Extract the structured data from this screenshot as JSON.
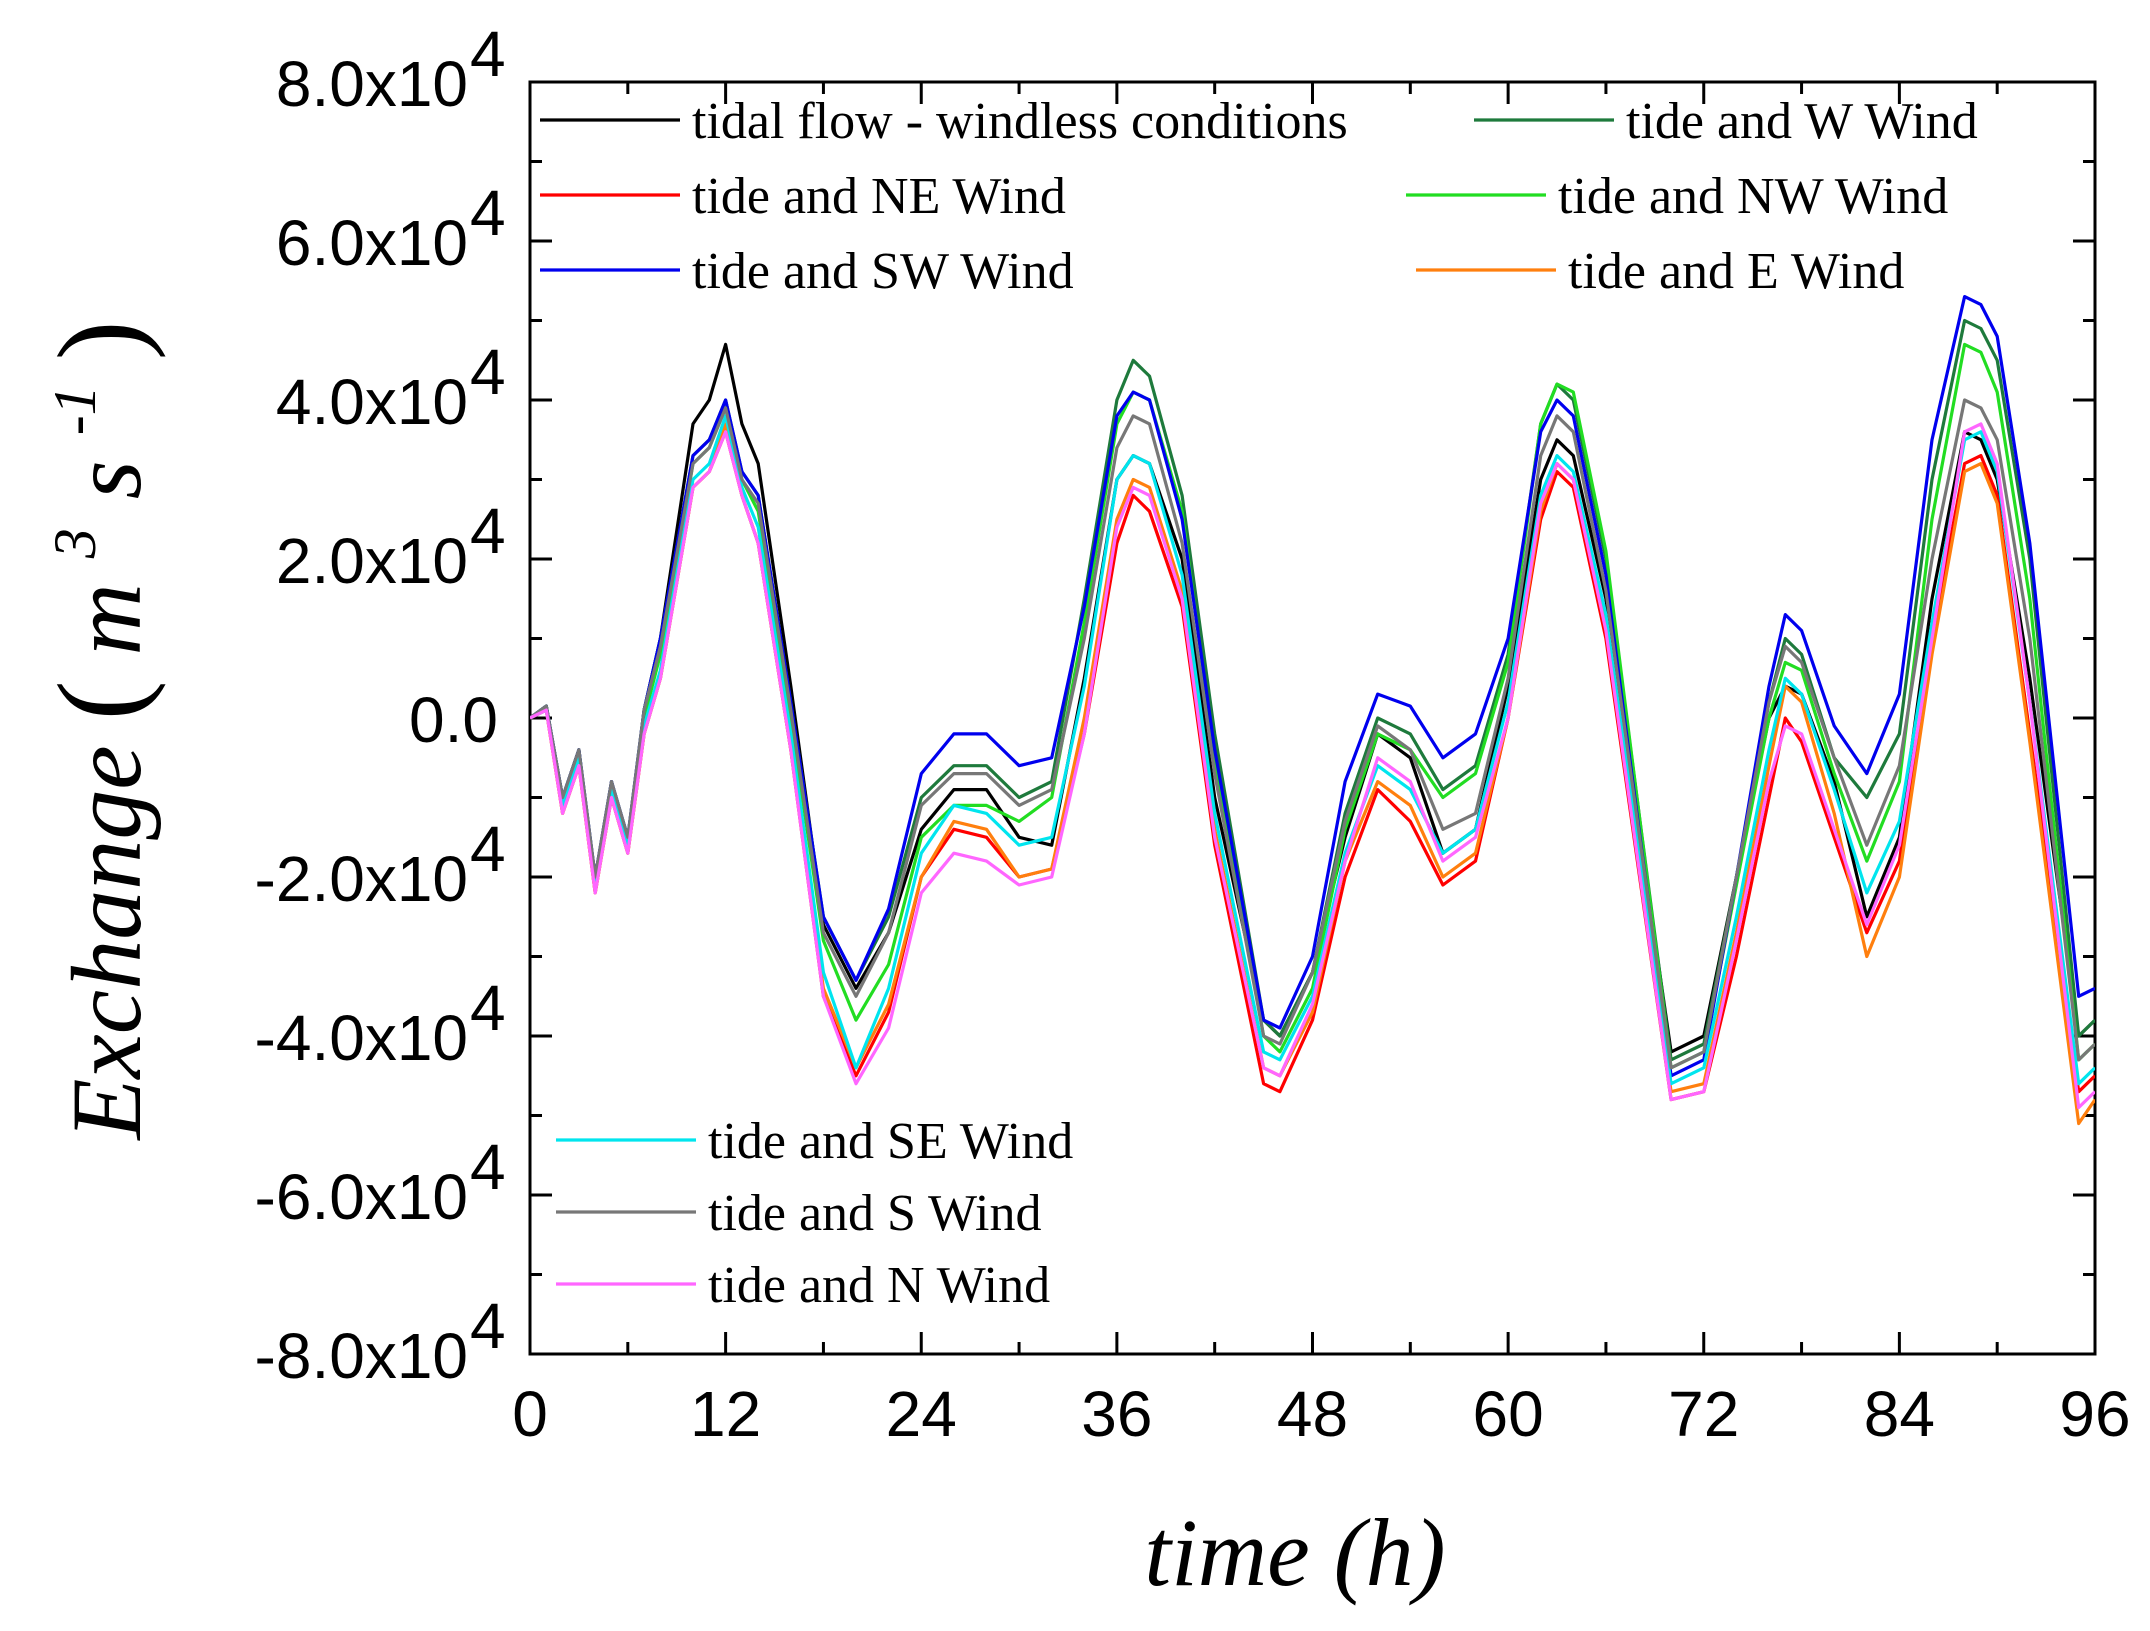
{
  "chart_data": {
    "type": "line",
    "title": "",
    "xlabel": "time (h)",
    "ylabel": {
      "base": "Exchange",
      "unit_open": "(",
      "unit_m": "m",
      "unit_m_exp": "3",
      "unit_s": "s",
      "unit_s_exp": "-1",
      "unit_close": ")"
    },
    "xlim": [
      0,
      96
    ],
    "ylim": [
      -80000,
      80000
    ],
    "x_ticks": [
      0,
      12,
      24,
      36,
      48,
      60,
      72,
      84,
      96
    ],
    "x_tick_labels": [
      "0",
      "12",
      "24",
      "36",
      "48",
      "60",
      "72",
      "84",
      "96"
    ],
    "y_ticks": [
      80000,
      60000,
      40000,
      20000,
      0,
      -20000,
      -40000,
      -60000,
      -80000
    ],
    "y_tick_labels": [
      {
        "mant": "8.0x10",
        "exp": "4"
      },
      {
        "mant": "6.0x10",
        "exp": "4"
      },
      {
        "mant": "4.0x10",
        "exp": "4"
      },
      {
        "mant": "2.0x10",
        "exp": "4"
      },
      {
        "mant": "0.0",
        "exp": ""
      },
      {
        "mant": "-2.0x10",
        "exp": "4"
      },
      {
        "mant": "-4.0x10",
        "exp": "4"
      },
      {
        "mant": "-6.0x10",
        "exp": "4"
      },
      {
        "mant": "-8.0x10",
        "exp": "4"
      }
    ],
    "series": [
      {
        "name": "tidal flow - windless conditions",
        "color": "#000000",
        "x": [
          0,
          1,
          2,
          3,
          4,
          5,
          6,
          7,
          8,
          10,
          11,
          12,
          13,
          14,
          16,
          18,
          20,
          22,
          24,
          26,
          28,
          30,
          32,
          34,
          36,
          37,
          38,
          40,
          42,
          45,
          46,
          48,
          50,
          52,
          54,
          56,
          58,
          60,
          62,
          63,
          64,
          66,
          70,
          72,
          74,
          76,
          77,
          78,
          80,
          82,
          84,
          86,
          88,
          89,
          90,
          92,
          95,
          96
        ],
        "y": [
          0,
          1500,
          -10000,
          -4000,
          -21000,
          -8000,
          -16000,
          1000,
          10000,
          37000,
          40000,
          47000,
          37000,
          32000,
          4000,
          -26000,
          -34000,
          -27000,
          -14000,
          -9000,
          -9000,
          -15000,
          -16000,
          5000,
          30000,
          33000,
          32000,
          20000,
          -10000,
          -38000,
          -40000,
          -32000,
          -15000,
          -2000,
          -5000,
          -17000,
          -14000,
          4000,
          30000,
          35000,
          33000,
          15000,
          -42000,
          -40000,
          -20000,
          0,
          4000,
          3000,
          -8000,
          -25000,
          -15000,
          15000,
          36000,
          35000,
          30000,
          5000,
          -40000,
          -38000
        ]
      },
      {
        "name": "tide and W Wind",
        "color": "#1e7a3c",
        "x": [
          0,
          1,
          2,
          3,
          4,
          5,
          6,
          7,
          8,
          10,
          11,
          12,
          13,
          14,
          16,
          18,
          20,
          22,
          24,
          26,
          28,
          30,
          32,
          34,
          36,
          37,
          38,
          40,
          42,
          45,
          46,
          48,
          50,
          52,
          54,
          56,
          58,
          60,
          62,
          63,
          64,
          66,
          70,
          72,
          74,
          76,
          77,
          78,
          80,
          82,
          84,
          86,
          88,
          89,
          90,
          92,
          95,
          96
        ],
        "y": [
          0,
          1500,
          -10000,
          -4000,
          -20000,
          -8000,
          -15000,
          1000,
          10000,
          33000,
          35000,
          40000,
          31000,
          28000,
          2000,
          -25000,
          -33000,
          -25000,
          -10000,
          -6000,
          -6000,
          -10000,
          -8000,
          15000,
          40000,
          45000,
          43000,
          28000,
          -2000,
          -38000,
          -40000,
          -32000,
          -12000,
          0,
          -2000,
          -9000,
          -6000,
          8000,
          37000,
          42000,
          40000,
          20000,
          -43000,
          -41000,
          -20000,
          2000,
          10000,
          8000,
          -5000,
          -10000,
          -2000,
          30000,
          50000,
          49000,
          45000,
          20000,
          -40000,
          -38000
        ]
      },
      {
        "name": "tide and NE Wind",
        "color": "#ff0000",
        "x": [
          0,
          1,
          2,
          3,
          4,
          5,
          6,
          7,
          8,
          10,
          11,
          12,
          13,
          14,
          16,
          18,
          20,
          22,
          24,
          26,
          28,
          30,
          32,
          34,
          36,
          37,
          38,
          40,
          42,
          45,
          46,
          48,
          50,
          52,
          54,
          56,
          58,
          60,
          62,
          63,
          64,
          66,
          70,
          72,
          74,
          76,
          77,
          78,
          80,
          82,
          84,
          86,
          88,
          89,
          90,
          92,
          95,
          96
        ],
        "y": [
          0,
          1000,
          -12000,
          -6000,
          -22000,
          -10000,
          -17000,
          -2000,
          5000,
          29000,
          31000,
          36000,
          28000,
          22000,
          -4000,
          -35000,
          -45000,
          -37000,
          -20000,
          -14000,
          -15000,
          -20000,
          -19000,
          -2000,
          22000,
          28000,
          26000,
          14000,
          -16000,
          -46000,
          -47000,
          -38000,
          -20000,
          -9000,
          -13000,
          -21000,
          -18000,
          0,
          25000,
          31000,
          29000,
          10000,
          -48000,
          -47000,
          -30000,
          -10000,
          0,
          -3000,
          -15000,
          -27000,
          -18000,
          10000,
          32000,
          33000,
          28000,
          -2000,
          -47000,
          -45000
        ]
      },
      {
        "name": "tide and NW Wind",
        "color": "#22dd22",
        "x": [
          0,
          1,
          2,
          3,
          4,
          5,
          6,
          7,
          8,
          10,
          11,
          12,
          13,
          14,
          16,
          18,
          20,
          22,
          24,
          26,
          28,
          30,
          32,
          34,
          36,
          37,
          38,
          40,
          42,
          45,
          46,
          48,
          50,
          52,
          54,
          56,
          58,
          60,
          62,
          63,
          64,
          66,
          70,
          72,
          74,
          76,
          77,
          78,
          80,
          82,
          84,
          86,
          88,
          89,
          90,
          92,
          95,
          96
        ],
        "y": [
          0,
          1500,
          -11000,
          -5000,
          -21000,
          -9000,
          -16000,
          0,
          8000,
          32000,
          34000,
          39000,
          30000,
          26000,
          0,
          -28000,
          -38000,
          -31000,
          -15000,
          -11000,
          -11000,
          -13000,
          -10000,
          12000,
          37000,
          41000,
          40000,
          26000,
          -5000,
          -40000,
          -42000,
          -34000,
          -14000,
          -2000,
          -4000,
          -10000,
          -7000,
          7000,
          37000,
          42000,
          41000,
          21000,
          -44000,
          -42000,
          -21000,
          0,
          7000,
          6000,
          -7000,
          -18000,
          -8000,
          25000,
          47000,
          46000,
          41000,
          15000,
          -43000,
          -41000
        ]
      },
      {
        "name": "tide and SW Wind",
        "color": "#0000ee",
        "x": [
          0,
          1,
          2,
          3,
          4,
          5,
          6,
          7,
          8,
          10,
          11,
          12,
          13,
          14,
          16,
          18,
          20,
          22,
          24,
          26,
          28,
          30,
          32,
          34,
          36,
          37,
          38,
          40,
          42,
          45,
          46,
          48,
          50,
          52,
          54,
          56,
          58,
          60,
          62,
          63,
          64,
          66,
          70,
          72,
          74,
          76,
          77,
          78,
          80,
          82,
          84,
          86,
          88,
          89,
          90,
          92,
          95,
          96
        ],
        "y": [
          0,
          1500,
          -10000,
          -4000,
          -20000,
          -8000,
          -15000,
          1000,
          10000,
          33000,
          35000,
          40000,
          31000,
          28000,
          2000,
          -25000,
          -33000,
          -24000,
          -7000,
          -2000,
          -2000,
          -6000,
          -5000,
          14000,
          38000,
          41000,
          40000,
          25000,
          -4000,
          -38000,
          -39000,
          -30000,
          -8000,
          3000,
          1500,
          -5000,
          -2000,
          10000,
          36000,
          40000,
          38000,
          18000,
          -45000,
          -43000,
          -20000,
          4000,
          13000,
          11000,
          -1000,
          -7000,
          3000,
          35000,
          53000,
          52000,
          48000,
          22000,
          -35000,
          -34000
        ]
      },
      {
        "name": "tide and E Wind",
        "color": "#ff7f0e",
        "x": [
          0,
          1,
          2,
          3,
          4,
          5,
          6,
          7,
          8,
          10,
          11,
          12,
          13,
          14,
          16,
          18,
          20,
          22,
          24,
          26,
          28,
          30,
          32,
          34,
          36,
          37,
          38,
          40,
          42,
          45,
          46,
          48,
          50,
          52,
          54,
          56,
          58,
          60,
          62,
          63,
          64,
          66,
          70,
          72,
          74,
          76,
          77,
          78,
          80,
          82,
          84,
          86,
          88,
          89,
          90,
          92,
          95,
          96
        ],
        "y": [
          0,
          1000,
          -12000,
          -6000,
          -22000,
          -10000,
          -17000,
          -2000,
          5000,
          29000,
          31000,
          37000,
          28000,
          22000,
          -4000,
          -34000,
          -44000,
          -36000,
          -20000,
          -13000,
          -14000,
          -20000,
          -19000,
          0,
          25000,
          30000,
          29000,
          16000,
          -14000,
          -44000,
          -45000,
          -37000,
          -18000,
          -8000,
          -11000,
          -20000,
          -17000,
          0,
          26000,
          32000,
          30000,
          12000,
          -47000,
          -46000,
          -27000,
          -6000,
          4000,
          2000,
          -12000,
          -30000,
          -20000,
          8000,
          31000,
          32000,
          27000,
          -3000,
          -51000,
          -48000
        ]
      },
      {
        "name": "tide and SE Wind",
        "color": "#00e5ee",
        "x": [
          0,
          1,
          2,
          3,
          4,
          5,
          6,
          7,
          8,
          10,
          11,
          12,
          13,
          14,
          16,
          18,
          20,
          22,
          24,
          26,
          28,
          30,
          32,
          34,
          36,
          37,
          38,
          40,
          42,
          45,
          46,
          48,
          50,
          52,
          54,
          56,
          58,
          60,
          62,
          63,
          64,
          66,
          70,
          72,
          74,
          76,
          77,
          78,
          80,
          82,
          84,
          86,
          88,
          89,
          90,
          92,
          95,
          96
        ],
        "y": [
          0,
          1000,
          -11000,
          -5000,
          -21000,
          -9000,
          -16000,
          -1000,
          6000,
          30000,
          32000,
          38000,
          29000,
          24000,
          -2000,
          -32000,
          -44000,
          -34000,
          -17000,
          -11000,
          -12000,
          -16000,
          -15000,
          4000,
          30000,
          33000,
          32000,
          18000,
          -12000,
          -42000,
          -43000,
          -35000,
          -17000,
          -6000,
          -9000,
          -17000,
          -14000,
          2000,
          28000,
          33000,
          31000,
          13000,
          -46000,
          -44000,
          -25000,
          -4000,
          5000,
          3000,
          -9000,
          -22000,
          -13000,
          12000,
          35000,
          36000,
          31000,
          2000,
          -46000,
          -44000
        ]
      },
      {
        "name": "tide and S Wind",
        "color": "#777777",
        "x": [
          0,
          1,
          2,
          3,
          4,
          5,
          6,
          7,
          8,
          10,
          11,
          12,
          13,
          14,
          16,
          18,
          20,
          22,
          24,
          26,
          28,
          30,
          32,
          34,
          36,
          37,
          38,
          40,
          42,
          45,
          46,
          48,
          50,
          52,
          54,
          56,
          58,
          60,
          62,
          63,
          64,
          66,
          70,
          72,
          74,
          76,
          77,
          78,
          80,
          82,
          84,
          86,
          88,
          89,
          90,
          92,
          95,
          96
        ],
        "y": [
          0,
          1500,
          -10000,
          -4000,
          -20000,
          -8000,
          -15000,
          1000,
          9000,
          32000,
          34000,
          39000,
          30000,
          27000,
          1000,
          -27000,
          -35000,
          -27000,
          -11000,
          -7000,
          -7000,
          -11000,
          -9000,
          10000,
          34000,
          38000,
          37000,
          22000,
          -7000,
          -40000,
          -41000,
          -32000,
          -13000,
          -1000,
          -4000,
          -14000,
          -12000,
          5000,
          33000,
          38000,
          36000,
          16000,
          -44000,
          -42000,
          -20000,
          2000,
          9000,
          7000,
          -5000,
          -16000,
          -6000,
          20000,
          40000,
          39000,
          35000,
          10000,
          -43000,
          -41000
        ]
      },
      {
        "name": "tide and N Wind",
        "color": "#ff66ff",
        "x": [
          0,
          1,
          2,
          3,
          4,
          5,
          6,
          7,
          8,
          10,
          11,
          12,
          13,
          14,
          16,
          18,
          20,
          22,
          24,
          26,
          28,
          30,
          32,
          34,
          36,
          37,
          38,
          40,
          42,
          45,
          46,
          48,
          50,
          52,
          54,
          56,
          58,
          60,
          62,
          63,
          64,
          66,
          70,
          72,
          74,
          76,
          77,
          78,
          80,
          82,
          84,
          86,
          88,
          89,
          90,
          92,
          95,
          96
        ],
        "y": [
          0,
          1000,
          -12000,
          -6000,
          -22000,
          -10000,
          -17000,
          -2000,
          5000,
          29000,
          31000,
          36000,
          28000,
          22000,
          -4000,
          -35000,
          -46000,
          -39000,
          -22000,
          -17000,
          -18000,
          -21000,
          -20000,
          -2000,
          24000,
          29000,
          28000,
          15000,
          -15000,
          -44000,
          -45000,
          -36000,
          -18000,
          -5000,
          -8000,
          -18000,
          -15000,
          0,
          27000,
          32000,
          30000,
          11000,
          -48000,
          -47000,
          -28000,
          -8000,
          -1000,
          -2000,
          -14000,
          -26000,
          -16000,
          10000,
          36000,
          37000,
          32000,
          2000,
          -49000,
          -47000
        ]
      }
    ],
    "legend_groups": [
      {
        "placement": "top",
        "entries": [
          0,
          1,
          2,
          3,
          4,
          5
        ]
      },
      {
        "placement": "bottom-left",
        "entries": [
          6,
          7,
          8
        ]
      }
    ]
  }
}
